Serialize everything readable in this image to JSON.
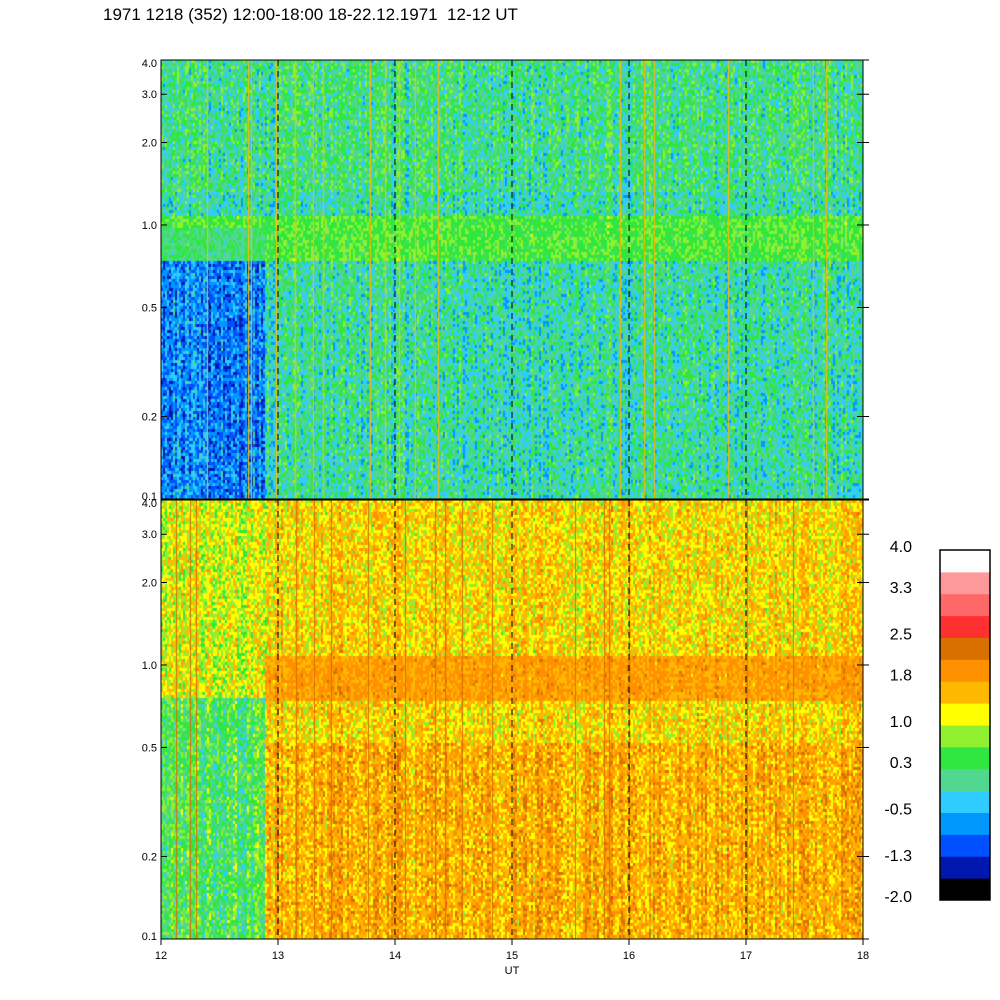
{
  "title": "1971 1218 (352) 12:00-18:00 18-22.12.1971  12-12 UT",
  "colors": {
    "colorbar_bins": [
      "#000000",
      "#0018b0",
      "#0050ff",
      "#0098ff",
      "#30ccff",
      "#50d890",
      "#30e640",
      "#90f030",
      "#ffff00",
      "#ffb800",
      "#ff9000",
      "#d87000",
      "#ff3030",
      "#ff6868",
      "#ff9898",
      "#ffffff"
    ],
    "dashed_line": "#000000"
  },
  "chart_data": [
    {
      "type": "heatmap",
      "panel": "upper",
      "title": "",
      "xlabel": "",
      "ylabel": "",
      "x_range": [
        12,
        18
      ],
      "y_range": [
        0.1,
        4.0
      ],
      "y_scale": "log",
      "y_ticks": [
        "0.1",
        "0.2",
        "0.5",
        "1.0",
        "2.0",
        "3.0",
        "4.0"
      ],
      "y_tick_values": [
        0.1,
        0.2,
        0.5,
        1.0,
        2.0,
        3.0,
        4.0
      ],
      "vertical_dashed_lines_x": [
        13,
        14,
        15,
        16,
        17
      ],
      "dominant_level": 0.0,
      "band_near_y": 0.9,
      "band_level": 0.9
    },
    {
      "type": "heatmap",
      "panel": "lower",
      "title": "",
      "xlabel": "UT",
      "ylabel": "",
      "x_range": [
        12,
        18
      ],
      "x_ticks": [
        "12",
        "13",
        "14",
        "15",
        "16",
        "17",
        "18"
      ],
      "x_tick_values": [
        12,
        13,
        14,
        15,
        16,
        17,
        18
      ],
      "y_range": [
        0.1,
        4.0
      ],
      "y_scale": "log",
      "y_ticks": [
        "0.1",
        "0.2",
        "0.5",
        "1.0",
        "2.0",
        "3.0",
        "4.0"
      ],
      "y_tick_values": [
        0.1,
        0.2,
        0.5,
        1.0,
        2.0,
        3.0,
        4.0
      ],
      "vertical_dashed_lines_x": [
        13,
        14,
        15,
        16,
        17
      ],
      "dominant_level": 1.4,
      "band_near_y": 0.9,
      "band_level": 2.1
    },
    {
      "type": "colorbar",
      "range": [
        -2.0,
        4.0
      ],
      "labels": [
        "4.0",
        "3.3",
        "2.5",
        "1.8",
        "1.0",
        "0.3",
        "-0.5",
        "-1.3",
        "-2.0"
      ],
      "label_values": [
        4.0,
        3.3,
        2.5,
        1.8,
        1.0,
        0.3,
        -0.5,
        -1.3,
        -2.0
      ]
    }
  ]
}
